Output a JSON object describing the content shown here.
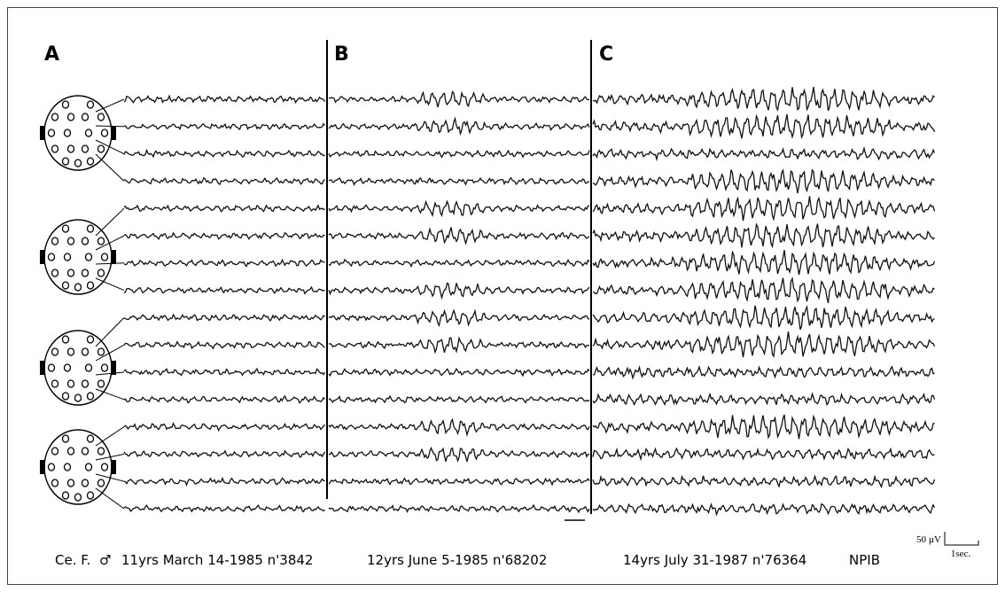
{
  "panels": [
    {
      "label": "A"
    },
    {
      "label": "B"
    },
    {
      "label": "C"
    }
  ],
  "footer": {
    "patient": "Ce. F.",
    "sex_symbol": "♂",
    "recordings": [
      "11yrs March 14-1985 n'3842",
      "12yrs June 5-1985 n'68202",
      "14yrs July 31-1987 n'76364"
    ],
    "lab": "NPIB"
  },
  "scale": {
    "amplitude": "50 µV",
    "time": "1sec."
  }
}
